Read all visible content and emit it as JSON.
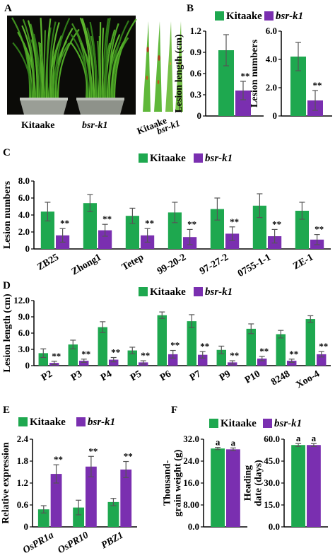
{
  "colors": {
    "kitaake": "#1ea84f",
    "bsr": "#7a2fb0",
    "error": "#555555"
  },
  "panels": {
    "A": {
      "label": "A",
      "photo_labels": [
        "Kitaake",
        "bsr-k1",
        "Kitaake",
        "bsr-k1"
      ]
    },
    "B": {
      "label": "B"
    },
    "C": {
      "label": "C"
    },
    "D": {
      "label": "D"
    },
    "E": {
      "label": "E"
    },
    "F": {
      "label": "F"
    }
  },
  "chart_data": [
    {
      "id": "B1",
      "type": "bar",
      "ylabel": "Lesion length (cm)",
      "ylim": [
        0,
        1.2
      ],
      "yticks": [
        "0",
        "0.3",
        "0.6",
        "0.9",
        "1.2"
      ],
      "categories": [
        ""
      ],
      "series": [
        {
          "name": "Kitaake",
          "values": [
            0.93
          ],
          "errors": [
            0.22
          ]
        },
        {
          "name": "bsr-k1",
          "values": [
            0.36
          ],
          "errors": [
            0.13
          ],
          "labels": [
            "**"
          ]
        }
      ],
      "legend": "top"
    },
    {
      "id": "B2",
      "type": "bar",
      "ylabel": "Lesion numbers",
      "ylim": [
        0,
        6.0
      ],
      "yticks": [
        "0",
        "2.0",
        "4.0",
        "6.0"
      ],
      "categories": [
        ""
      ],
      "series": [
        {
          "name": "Kitaake",
          "values": [
            4.2
          ],
          "errors": [
            1.0
          ]
        },
        {
          "name": "bsr-k1",
          "values": [
            1.1
          ],
          "errors": [
            0.7
          ],
          "labels": [
            "**"
          ]
        }
      ]
    },
    {
      "id": "C",
      "type": "bar",
      "ylabel": "Lesion numbers",
      "ylim": [
        0,
        8.0
      ],
      "yticks": [
        "0",
        "2.0",
        "4.0",
        "6.0",
        "8.0"
      ],
      "categories": [
        "ZB25",
        "Zhong1",
        "Tetep",
        "99-20-2",
        "97-27-2",
        "0755-1-1",
        "ZE-1"
      ],
      "series": [
        {
          "name": "Kitaake",
          "values": [
            4.4,
            5.4,
            3.9,
            4.3,
            4.7,
            5.1,
            4.5
          ],
          "errors": [
            1.1,
            1.0,
            0.9,
            1.2,
            1.3,
            1.4,
            1.0
          ]
        },
        {
          "name": "bsr-k1",
          "values": [
            1.6,
            2.2,
            1.6,
            1.4,
            1.8,
            1.5,
            1.1
          ],
          "errors": [
            0.8,
            0.7,
            0.8,
            0.9,
            0.8,
            0.8,
            0.6
          ],
          "labels": [
            "**",
            "**",
            "**",
            "**",
            "**",
            "**",
            "**"
          ]
        }
      ],
      "legend": "top"
    },
    {
      "id": "D",
      "type": "bar",
      "ylabel": "Lesion length (cm)",
      "ylim": [
        0,
        12.0
      ],
      "yticks": [
        "0",
        "3.0",
        "6.0",
        "9.0",
        "12.0"
      ],
      "categories": [
        "P2",
        "P3",
        "P4",
        "P5",
        "P6",
        "P7",
        "P9",
        "P10",
        "8248",
        "Xoo-4"
      ],
      "series": [
        {
          "name": "Kitaake",
          "values": [
            2.3,
            3.9,
            7.1,
            2.8,
            9.3,
            8.2,
            2.9,
            6.8,
            5.8,
            8.6
          ],
          "errors": [
            0.8,
            0.8,
            1.0,
            0.6,
            0.6,
            1.2,
            0.7,
            0.9,
            0.7,
            0.6
          ]
        },
        {
          "name": "bsr-k1",
          "values": [
            0.5,
            0.9,
            1.1,
            0.6,
            2.1,
            2.0,
            0.6,
            1.3,
            0.9,
            2.1
          ],
          "errors": [
            0.3,
            0.3,
            0.4,
            0.3,
            0.7,
            0.6,
            0.3,
            0.4,
            0.3,
            0.5
          ],
          "labels": [
            "**",
            "**",
            "**",
            "**",
            "**",
            "**",
            "**",
            "**",
            "**",
            "**"
          ]
        }
      ],
      "legend": "top"
    },
    {
      "id": "E",
      "type": "bar",
      "ylabel": "Relative expression",
      "ylim": [
        0,
        2.4
      ],
      "yticks": [
        "0",
        "0.6",
        "1.2",
        "1.8",
        "2.4"
      ],
      "categories": [
        "OsPR1a",
        "OsPR10",
        "PBZ1"
      ],
      "series": [
        {
          "name": "Kitaake",
          "values": [
            0.48,
            0.53,
            0.68
          ],
          "errors": [
            0.1,
            0.2,
            0.1
          ]
        },
        {
          "name": "bsr-k1",
          "values": [
            1.45,
            1.65,
            1.57
          ],
          "errors": [
            0.25,
            0.28,
            0.22
          ],
          "labels": [
            "**",
            "**",
            "**"
          ]
        }
      ],
      "legend": "top"
    },
    {
      "id": "F1",
      "type": "bar",
      "ylabel": "Thousand-grain weight (g)",
      "ylim": [
        0,
        32.0
      ],
      "yticks": [
        "0.0",
        "8.00",
        "16.0",
        "24.0",
        "32.0"
      ],
      "categories": [
        ""
      ],
      "series": [
        {
          "name": "Kitaake",
          "values": [
            28.6
          ],
          "errors": [
            0.4
          ],
          "labels": [
            "a"
          ]
        },
        {
          "name": "bsr-k1",
          "values": [
            28.3
          ],
          "errors": [
            0.5
          ],
          "labels": [
            "a"
          ]
        }
      ],
      "legend": "top"
    },
    {
      "id": "F2",
      "type": "bar",
      "ylabel": "Heading date (days)",
      "ylim": [
        0,
        60.0
      ],
      "yticks": [
        "0.0",
        "15.0",
        "30.0",
        "45.0",
        "60.0"
      ],
      "categories": [
        ""
      ],
      "series": [
        {
          "name": "Kitaake",
          "values": [
            56.0
          ],
          "errors": [
            1.0
          ],
          "labels": [
            "a"
          ]
        },
        {
          "name": "bsr-k1",
          "values": [
            56.0
          ],
          "errors": [
            1.0
          ],
          "labels": [
            "a"
          ]
        }
      ]
    }
  ]
}
